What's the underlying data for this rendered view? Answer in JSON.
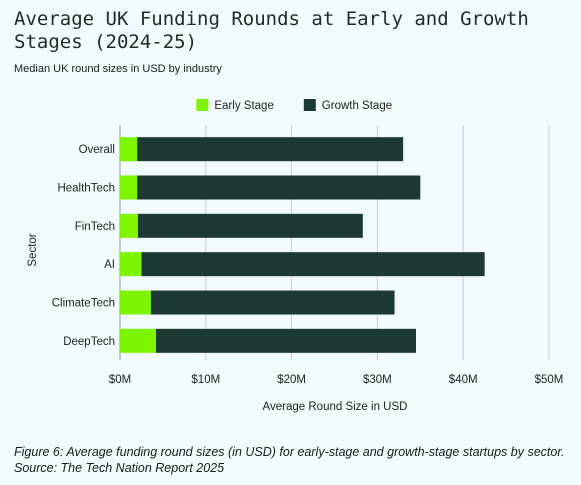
{
  "title": "Average UK Funding Rounds at Early and Growth Stages (2024-25)",
  "subtitle": "Median UK round sizes in USD by industry",
  "caption": "Figure 6: Average funding round sizes (in USD) for early-stage and growth-stage startups by sector. Source: The Tech Nation Report 2025",
  "chart_data": {
    "type": "bar",
    "orientation": "horizontal",
    "stacked": true,
    "categories": [
      "Overall",
      "HealthTech",
      "FinTech",
      "AI",
      "ClimateTech",
      "DeepTech"
    ],
    "series": [
      {
        "name": "Early Stage",
        "color": "#7ef500",
        "values": [
          2.0,
          2.0,
          2.1,
          2.5,
          3.6,
          4.2
        ]
      },
      {
        "name": "Growth Stage",
        "color": "#1c3a33",
        "values": [
          31.0,
          33.0,
          26.2,
          40.0,
          28.4,
          30.3
        ]
      }
    ],
    "xlabel": "Average Round Size in USD",
    "ylabel": "Sector",
    "xlim": [
      0,
      50
    ],
    "xticks": [
      0,
      10,
      20,
      30,
      40,
      50
    ],
    "xtick_labels": [
      "$0M",
      "$10M",
      "$20M",
      "$30M",
      "$40M",
      "$50M"
    ],
    "grid": "vertical",
    "legend_position": "top"
  }
}
